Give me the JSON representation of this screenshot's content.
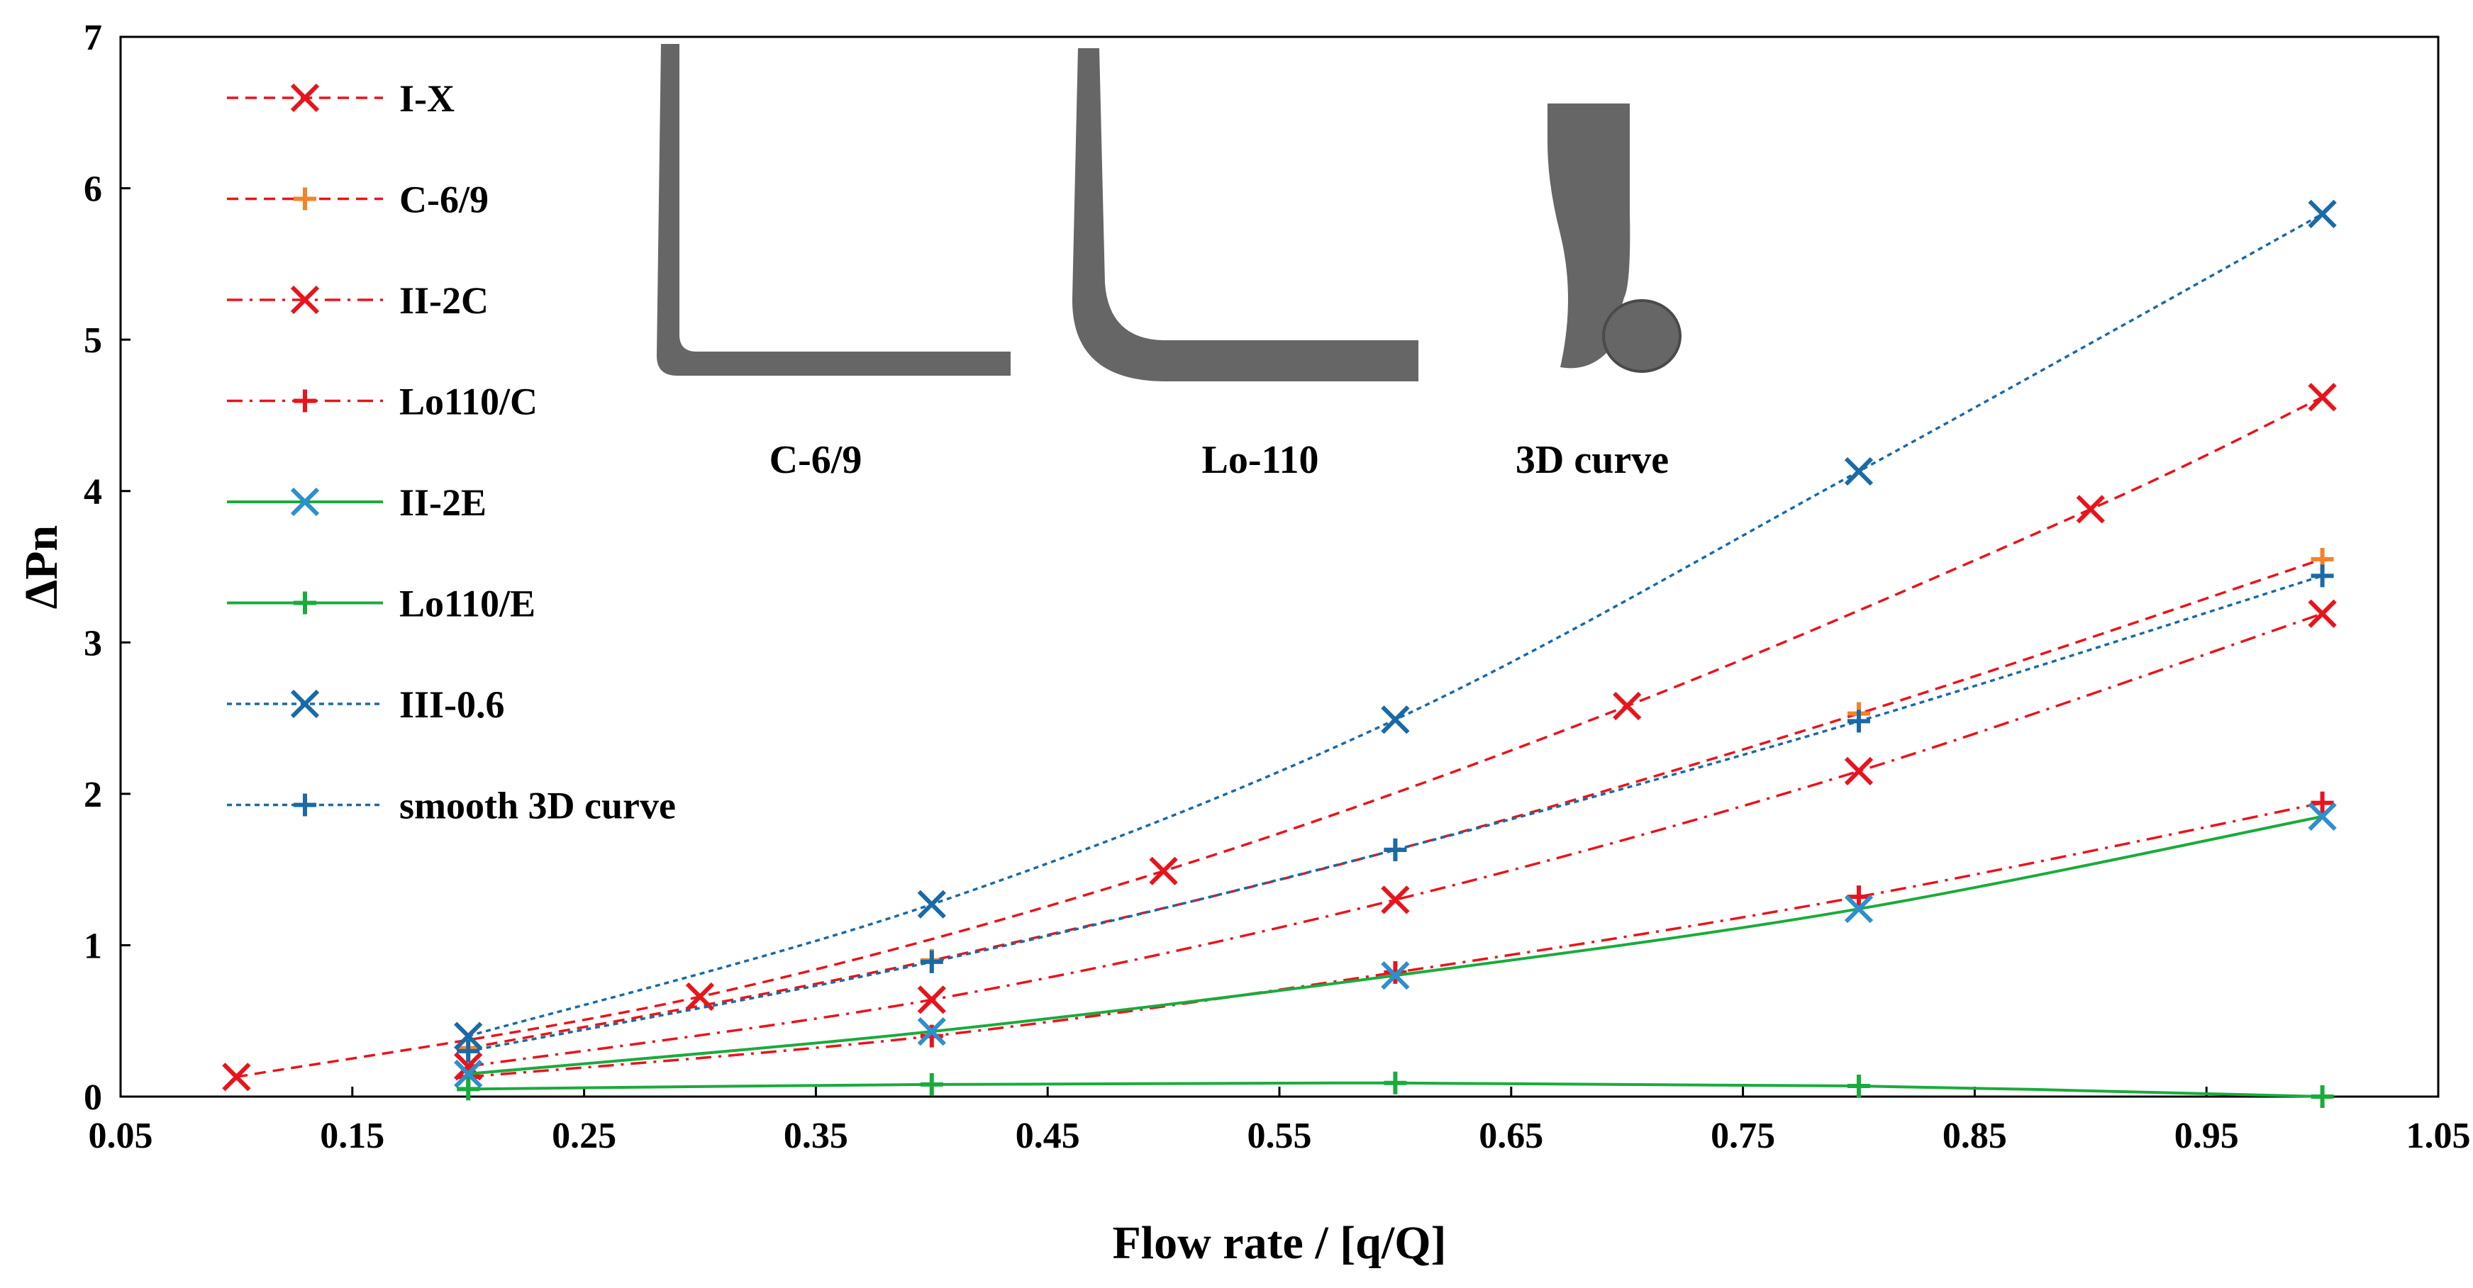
{
  "chart_data": {
    "type": "line",
    "title": "",
    "xlabel": "Flow rate / [q/Q]",
    "ylabel": "ΔPn",
    "xlim": [
      0.05,
      1.05
    ],
    "ylim": [
      0,
      7
    ],
    "x_ticks": [
      "0.05",
      "0.15",
      "0.25",
      "0.35",
      "0.45",
      "0.55",
      "0.65",
      "0.75",
      "0.85",
      "0.95",
      "1.05"
    ],
    "y_ticks": [
      "0",
      "1",
      "2",
      "3",
      "4",
      "5",
      "6",
      "7"
    ],
    "grid": false,
    "legend_position": "top-left",
    "series": [
      {
        "name": "I-X",
        "color": "#e8141c",
        "dash": "dashed",
        "marker": "x",
        "x": [
          0.1,
          0.3,
          0.5,
          0.7,
          0.9,
          1.0
        ],
        "y": [
          0.13,
          0.66,
          1.49,
          2.58,
          3.88,
          4.62
        ]
      },
      {
        "name": "C-6/9",
        "color": "#f5822a",
        "line_color": "#e8141c",
        "dash": "dashed",
        "marker": "+",
        "x": [
          0.2,
          0.4,
          0.6,
          0.8,
          1.0
        ],
        "y": [
          0.32,
          0.9,
          1.63,
          2.53,
          3.55
        ]
      },
      {
        "name": "II-2C",
        "color": "#e8141c",
        "dash": "dashdot",
        "marker": "x",
        "x": [
          0.2,
          0.4,
          0.6,
          0.8,
          1.0
        ],
        "y": [
          0.2,
          0.64,
          1.3,
          2.15,
          3.19
        ]
      },
      {
        "name": "Lo110/C",
        "color": "#e8141c",
        "dash": "dashdot",
        "marker": "+",
        "x": [
          0.2,
          0.4,
          0.6,
          0.8,
          1.0
        ],
        "y": [
          0.13,
          0.4,
          0.82,
          1.32,
          1.94
        ]
      },
      {
        "name": "II-2E",
        "color": "#2e8fce",
        "line_color": "#1aab3c",
        "dash": "solid",
        "marker": "x",
        "x": [
          0.2,
          0.4,
          0.6,
          0.8,
          1.0
        ],
        "y": [
          0.15,
          0.43,
          0.8,
          1.24,
          1.85
        ]
      },
      {
        "name": "Lo110/E",
        "color": "#1aab3c",
        "dash": "solid",
        "marker": "+",
        "x": [
          0.2,
          0.4,
          0.6,
          0.8,
          1.0
        ],
        "y": [
          0.05,
          0.08,
          0.09,
          0.07,
          0.0
        ]
      },
      {
        "name": "III-0.6",
        "color": "#1a6aa6",
        "dash": "dotted",
        "marker": "x",
        "x": [
          0.2,
          0.4,
          0.6,
          0.8,
          1.0
        ],
        "y": [
          0.4,
          1.27,
          2.49,
          4.13,
          5.83
        ]
      },
      {
        "name": "smooth 3D curve",
        "color": "#1a6aa6",
        "dash": "dotted",
        "marker": "+",
        "x": [
          0.2,
          0.4,
          0.6,
          0.8,
          1.0
        ],
        "y": [
          0.3,
          0.89,
          1.63,
          2.48,
          3.44
        ]
      }
    ],
    "insets": [
      {
        "name": "C-6/9 shape",
        "label": "C-6/9",
        "color": "#666666"
      },
      {
        "name": "Lo-110 shape",
        "label": "Lo-110",
        "color": "#666666"
      },
      {
        "name": "3D curve shape",
        "label": "3D curve",
        "color": "#666666"
      }
    ]
  }
}
